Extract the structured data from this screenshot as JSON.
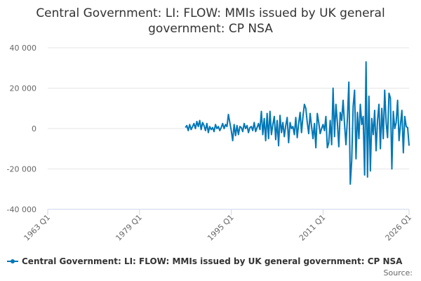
{
  "chart_data": {
    "type": "line",
    "title": "Central Government: LI: FLOW: MMIs issued by UK general government: CP NSA",
    "source": "Source:",
    "xlim": [
      "1963 Q1",
      "2026 Q1"
    ],
    "xticks": [
      "1963 Q1",
      "1979 Q1",
      "1995 Q1",
      "2011 Q1",
      "2026 Q1"
    ],
    "ylim": [
      -40000,
      40000
    ],
    "yticks": [
      {
        "value": -40000,
        "label": "-40 000"
      },
      {
        "value": -20000,
        "label": "-20 000"
      },
      0,
      {
        "value": 20000,
        "label": "20 000"
      },
      {
        "value": 40000,
        "label": "40 000"
      }
    ],
    "grid": true,
    "x": [
      "1987 Q1",
      "1987 Q2",
      "1987 Q3",
      "1987 Q4",
      "1988 Q1",
      "1988 Q2",
      "1988 Q3",
      "1988 Q4",
      "1989 Q1",
      "1989 Q2",
      "1989 Q3",
      "1989 Q4",
      "1990 Q1",
      "1990 Q2",
      "1990 Q3",
      "1990 Q4",
      "1991 Q1",
      "1991 Q2",
      "1991 Q3",
      "1991 Q4",
      "1992 Q1",
      "1992 Q2",
      "1992 Q3",
      "1992 Q4",
      "1993 Q1",
      "1993 Q2",
      "1993 Q3",
      "1993 Q4",
      "1994 Q1",
      "1994 Q2",
      "1994 Q3",
      "1994 Q4",
      "1995 Q1",
      "1995 Q2",
      "1995 Q3",
      "1995 Q4",
      "1996 Q1",
      "1996 Q2",
      "1996 Q3",
      "1996 Q4",
      "1997 Q1",
      "1997 Q2",
      "1997 Q3",
      "1997 Q4",
      "1998 Q1",
      "1998 Q2",
      "1998 Q3",
      "1998 Q4",
      "1999 Q1",
      "1999 Q2",
      "1999 Q3",
      "1999 Q4",
      "2000 Q1",
      "2000 Q2",
      "2000 Q3",
      "2000 Q4",
      "2001 Q1",
      "2001 Q2",
      "2001 Q3",
      "2001 Q4",
      "2002 Q1",
      "2002 Q2",
      "2002 Q3",
      "2002 Q4",
      "2003 Q1",
      "2003 Q2",
      "2003 Q3",
      "2003 Q4",
      "2004 Q1",
      "2004 Q2",
      "2004 Q3",
      "2004 Q4",
      "2005 Q1",
      "2005 Q2",
      "2005 Q3",
      "2005 Q4",
      "2006 Q1",
      "2006 Q2",
      "2006 Q3",
      "2006 Q4",
      "2007 Q1",
      "2007 Q2",
      "2007 Q3",
      "2007 Q4",
      "2008 Q1",
      "2008 Q2",
      "2008 Q3",
      "2008 Q4",
      "2009 Q1",
      "2009 Q2",
      "2009 Q3",
      "2009 Q4",
      "2010 Q1",
      "2010 Q2",
      "2010 Q3",
      "2010 Q4",
      "2011 Q1",
      "2011 Q2",
      "2011 Q3",
      "2011 Q4",
      "2012 Q1",
      "2012 Q2",
      "2012 Q3",
      "2012 Q4",
      "2013 Q1",
      "2013 Q2",
      "2013 Q3",
      "2013 Q4",
      "2014 Q1",
      "2014 Q2",
      "2014 Q3",
      "2014 Q4",
      "2015 Q1",
      "2015 Q2",
      "2015 Q3",
      "2015 Q4",
      "2016 Q1",
      "2016 Q2",
      "2016 Q3",
      "2016 Q4",
      "2017 Q1",
      "2017 Q2",
      "2017 Q3",
      "2017 Q4",
      "2018 Q1",
      "2018 Q2",
      "2018 Q3",
      "2018 Q4",
      "2019 Q1",
      "2019 Q2",
      "2019 Q3",
      "2019 Q4",
      "2020 Q1",
      "2020 Q2",
      "2020 Q3",
      "2020 Q4",
      "2021 Q1",
      "2021 Q2",
      "2021 Q3",
      "2021 Q4",
      "2022 Q1",
      "2022 Q2",
      "2022 Q3",
      "2022 Q4",
      "2023 Q1",
      "2023 Q2",
      "2023 Q3",
      "2023 Q4",
      "2024 Q1",
      "2024 Q2",
      "2024 Q3",
      "2024 Q4",
      "2025 Q1",
      "2025 Q2",
      "2025 Q3",
      "2025 Q4",
      "2026 Q1"
    ],
    "series": [
      {
        "name": "Central Government: LI: FLOW: MMIs issued by UK general government: CP NSA",
        "color": "#0077b6",
        "values": [
          500,
          1500,
          -1000,
          2000,
          -500,
          1000,
          2500,
          0,
          3500,
          1000,
          4000,
          -500,
          3000,
          1500,
          -1000,
          2500,
          -2000,
          1000,
          -500,
          500,
          -1500,
          2000,
          0,
          1000,
          -1000,
          500,
          2500,
          0,
          2000,
          1000,
          7000,
          3000,
          -1000,
          -6000,
          2000,
          -3500,
          1500,
          -3000,
          1000,
          500,
          -1500,
          2500,
          0,
          1500,
          -2000,
          500,
          1000,
          -1000,
          3000,
          -1500,
          500,
          2500,
          -500,
          8500,
          -3000,
          5000,
          -6000,
          7500,
          -5000,
          8500,
          -3000,
          2000,
          6000,
          -5500,
          4000,
          -8500,
          6500,
          -2000,
          3000,
          -4000,
          1500,
          5500,
          -7000,
          3000,
          0,
          1000,
          -3000,
          5500,
          -4500,
          2500,
          8000,
          -2000,
          6000,
          12000,
          10000,
          3000,
          -2500,
          7500,
          1000,
          -5000,
          2500,
          -9500,
          7500,
          3000,
          -2500,
          0,
          2000,
          -1000,
          6000,
          -9500,
          -7000,
          4000,
          -8000,
          20000,
          -4000,
          12000,
          3000,
          -9000,
          8000,
          4000,
          14000,
          2000,
          -8000,
          5000,
          23000,
          -27500,
          -16000,
          11000,
          19000,
          -15000,
          8000,
          -5000,
          12000,
          2000,
          6000,
          -23000,
          33000,
          -24000,
          16000,
          -21000,
          5000,
          -3000,
          9000,
          -11000,
          4000,
          12000,
          -10000,
          10000,
          -5000,
          19000,
          3000,
          -4500,
          17500,
          15000,
          -20000,
          8500,
          0,
          3000,
          14000,
          -6000,
          2000,
          9000,
          -12000,
          6000,
          1000,
          500,
          -8500
        ]
      }
    ]
  }
}
